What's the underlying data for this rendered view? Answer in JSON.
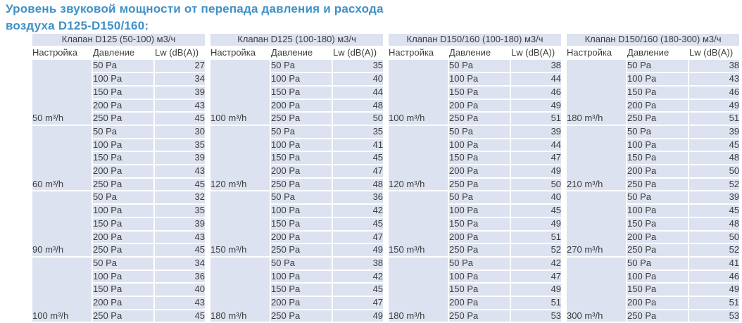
{
  "title_lines": [
    "Уровень звуковой мощности от перепада давления и расхода",
    "воздуха D125-D150/160:"
  ],
  "colors": {
    "title_blue": "#3f90c6",
    "cell_bg": "#dce2ef",
    "table_text": "#3c3c3c",
    "grid_white": "#ffffff"
  },
  "columns": {
    "setting": "Настройка",
    "pressure": "Давление",
    "lw": "Lw (dB(A))"
  },
  "tables": [
    {
      "title": "Клапан D125 (50-100) м3/ч",
      "groups": [
        {
          "setting": "50 m³/h",
          "rows": [
            {
              "pressure": "50 Pa",
              "lw": 27
            },
            {
              "pressure": "100 Pa",
              "lw": 34
            },
            {
              "pressure": "150 Pa",
              "lw": 39
            },
            {
              "pressure": "200 Pa",
              "lw": 43
            },
            {
              "pressure": "250 Pa",
              "lw": 45
            }
          ]
        },
        {
          "setting": "60 m³/h",
          "rows": [
            {
              "pressure": "50 Pa",
              "lw": 30
            },
            {
              "pressure": "100 Pa",
              "lw": 35
            },
            {
              "pressure": "150 Pa",
              "lw": 39
            },
            {
              "pressure": "200 Pa",
              "lw": 43
            },
            {
              "pressure": "250 Pa",
              "lw": 45
            }
          ]
        },
        {
          "setting": "90 m³/h",
          "rows": [
            {
              "pressure": "50 Pa",
              "lw": 32
            },
            {
              "pressure": "100 Pa",
              "lw": 35
            },
            {
              "pressure": "150 Pa",
              "lw": 39
            },
            {
              "pressure": "200 Pa",
              "lw": 43
            },
            {
              "pressure": "250 Pa",
              "lw": 45
            }
          ]
        },
        {
          "setting": "100 m³/h",
          "rows": [
            {
              "pressure": "50 Pa",
              "lw": 34
            },
            {
              "pressure": "100 Pa",
              "lw": 36
            },
            {
              "pressure": "150 Pa",
              "lw": 40
            },
            {
              "pressure": "200 Pa",
              "lw": 43
            },
            {
              "pressure": "250 Pa",
              "lw": 45
            }
          ]
        }
      ]
    },
    {
      "title": "Клапан D125 (100-180) м3/ч",
      "groups": [
        {
          "setting": "100 m³/h",
          "rows": [
            {
              "pressure": "50 Pa",
              "lw": 35
            },
            {
              "pressure": "100 Pa",
              "lw": 40
            },
            {
              "pressure": "150 Pa",
              "lw": 44
            },
            {
              "pressure": "200 Pa",
              "lw": 48
            },
            {
              "pressure": "250 Pa",
              "lw": 50
            }
          ]
        },
        {
          "setting": "120 m³/h",
          "rows": [
            {
              "pressure": "50 Pa",
              "lw": 35
            },
            {
              "pressure": "100 Pa",
              "lw": 41
            },
            {
              "pressure": "150 Pa",
              "lw": 45
            },
            {
              "pressure": "200 Pa",
              "lw": 47
            },
            {
              "pressure": "250 Pa",
              "lw": 48
            }
          ]
        },
        {
          "setting": "150 m³/h",
          "rows": [
            {
              "pressure": "50 Pa",
              "lw": 36
            },
            {
              "pressure": "100 Pa",
              "lw": 42
            },
            {
              "pressure": "150 Pa",
              "lw": 45
            },
            {
              "pressure": "200 Pa",
              "lw": 47
            },
            {
              "pressure": "250 Pa",
              "lw": 49
            }
          ]
        },
        {
          "setting": "180 m³/h",
          "rows": [
            {
              "pressure": "50 Pa",
              "lw": 38
            },
            {
              "pressure": "100 Pa",
              "lw": 42
            },
            {
              "pressure": "150 Pa",
              "lw": 45
            },
            {
              "pressure": "200 Pa",
              "lw": 47
            },
            {
              "pressure": "250 Pa",
              "lw": 49
            }
          ]
        }
      ]
    },
    {
      "title": "Клапан D150/160 (100-180) м3/ч",
      "groups": [
        {
          "setting": "100 m³/h",
          "rows": [
            {
              "pressure": "50 Pa",
              "lw": 38
            },
            {
              "pressure": "100 Pa",
              "lw": 44
            },
            {
              "pressure": "150 Pa",
              "lw": 46
            },
            {
              "pressure": "200 Pa",
              "lw": 49
            },
            {
              "pressure": "250 Pa",
              "lw": 51
            }
          ]
        },
        {
          "setting": "120 m³/h",
          "rows": [
            {
              "pressure": "50 Pa",
              "lw": 39
            },
            {
              "pressure": "100 Pa",
              "lw": 44
            },
            {
              "pressure": "150 Pa",
              "lw": 47
            },
            {
              "pressure": "200 Pa",
              "lw": 49
            },
            {
              "pressure": "250 Pa",
              "lw": 50
            }
          ]
        },
        {
          "setting": "150 m³/h",
          "rows": [
            {
              "pressure": "50 Pa",
              "lw": 40
            },
            {
              "pressure": "100 Pa",
              "lw": 45
            },
            {
              "pressure": "150 Pa",
              "lw": 49
            },
            {
              "pressure": "200 Pa",
              "lw": 51
            },
            {
              "pressure": "250 Pa",
              "lw": 52
            }
          ]
        },
        {
          "setting": "180 m³/h",
          "rows": [
            {
              "pressure": "50 Pa",
              "lw": 42
            },
            {
              "pressure": "100 Pa",
              "lw": 47
            },
            {
              "pressure": "150 Pa",
              "lw": 49
            },
            {
              "pressure": "200 Pa",
              "lw": 51
            },
            {
              "pressure": "250 Pa",
              "lw": 53
            }
          ]
        }
      ]
    },
    {
      "title": "Клапан D150/160 (180-300) м3/ч",
      "groups": [
        {
          "setting": "180 m³/h",
          "rows": [
            {
              "pressure": "50 Pa",
              "lw": 38
            },
            {
              "pressure": "100 Pa",
              "lw": 43
            },
            {
              "pressure": "150 Pa",
              "lw": 46
            },
            {
              "pressure": "200 Pa",
              "lw": 49
            },
            {
              "pressure": "250 Pa",
              "lw": 51
            }
          ]
        },
        {
          "setting": "210 m³/h",
          "rows": [
            {
              "pressure": "50 Pa",
              "lw": 39
            },
            {
              "pressure": "100 Pa",
              "lw": 45
            },
            {
              "pressure": "150 Pa",
              "lw": 48
            },
            {
              "pressure": "200 Pa",
              "lw": 50
            },
            {
              "pressure": "250 Pa",
              "lw": 52
            }
          ]
        },
        {
          "setting": "270 m³/h",
          "rows": [
            {
              "pressure": "50 Pa",
              "lw": 39
            },
            {
              "pressure": "100 Pa",
              "lw": 45
            },
            {
              "pressure": "150 Pa",
              "lw": 48
            },
            {
              "pressure": "200 Pa",
              "lw": 50
            },
            {
              "pressure": "250 Pa",
              "lw": 52
            }
          ]
        },
        {
          "setting": "300 m³/h",
          "rows": [
            {
              "pressure": "50 Pa",
              "lw": 41
            },
            {
              "pressure": "100 Pa",
              "lw": 46
            },
            {
              "pressure": "150 Pa",
              "lw": 49
            },
            {
              "pressure": "200 Pa",
              "lw": 51
            },
            {
              "pressure": "250 Pa",
              "lw": 53
            }
          ]
        }
      ]
    }
  ]
}
